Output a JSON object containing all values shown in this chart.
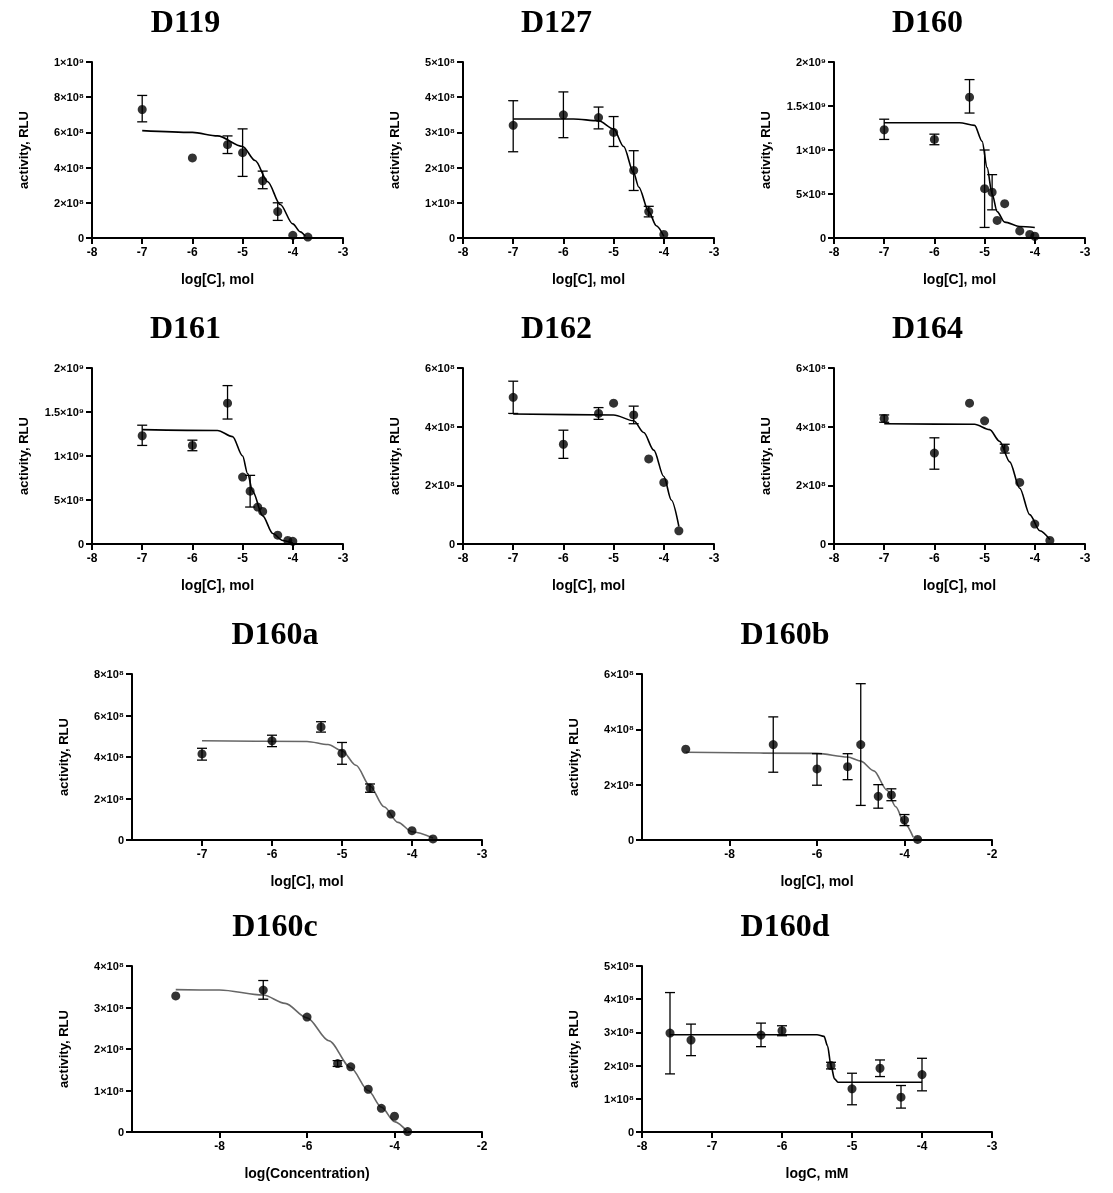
{
  "chart_data": [
    {
      "type": "scatter",
      "title": "D119",
      "xlabel": "log[C], mol",
      "ylabel": "activity, RLU",
      "xlim": [
        -8,
        -3
      ],
      "xticks": [
        -8,
        -7,
        -6,
        -5,
        -4,
        -3
      ],
      "ylim": [
        0,
        1000000000.0
      ],
      "yticks": [
        {
          "value": 0,
          "label": "0"
        },
        {
          "value": 200000000.0,
          "label": "2×10⁸"
        },
        {
          "value": 400000000.0,
          "label": "4×10⁸"
        },
        {
          "value": 600000000.0,
          "label": "6×10⁸"
        },
        {
          "value": 800000000.0,
          "label": "8×10⁸"
        },
        {
          "value": 1000000000.0,
          "label": "1×10⁹"
        }
      ],
      "marker": "circle",
      "series": [
        {
          "color": "#000000",
          "x": [
            -7,
            -6,
            -5.3,
            -5,
            -4.6,
            -4.3,
            -4,
            -3.7
          ],
          "values": [
            730000000.0,
            455000000.0,
            530000000.0,
            485000000.0,
            325000000.0,
            150000000.0,
            15000000.0,
            5000000.0
          ],
          "errors": [
            [
              660000000.0,
              810000000.0
            ],
            null,
            [
              480000000.0,
              580000000.0
            ],
            [
              350000000.0,
              620000000.0
            ],
            [
              280000000.0,
              380000000.0
            ],
            [
              100000000.0,
              200000000.0
            ],
            null,
            null
          ]
        },
        {
          "type": "line",
          "marker": "none",
          "color": "#000000",
          "x": [
            -7,
            -6,
            -5.5,
            -5,
            -4.75,
            -4.5,
            -4.25,
            -4,
            -3.85,
            -3.75
          ],
          "values": [
            610000000.0,
            600000000.0,
            580000000.0,
            520000000.0,
            440000000.0,
            320000000.0,
            190000000.0,
            80000000.0,
            35000000.0,
            10000000.0
          ]
        }
      ]
    },
    {
      "type": "scatter",
      "title": "D127",
      "xlabel": "log[C], mol",
      "ylabel": "activity, RLU",
      "xlim": [
        -8,
        -3
      ],
      "xticks": [
        -8,
        -7,
        -6,
        -5,
        -4,
        -3
      ],
      "ylim": [
        0,
        500000000.0
      ],
      "yticks": [
        {
          "value": 0,
          "label": "0"
        },
        {
          "value": 100000000.0,
          "label": "1×10⁸"
        },
        {
          "value": 200000000.0,
          "label": "2×10⁸"
        },
        {
          "value": 300000000.0,
          "label": "3×10⁸"
        },
        {
          "value": 400000000.0,
          "label": "4×10⁸"
        },
        {
          "value": 500000000.0,
          "label": "5×10⁸"
        }
      ],
      "marker": "circle",
      "series": [
        {
          "color": "#000000",
          "x": [
            -7,
            -6,
            -5.3,
            -5,
            -4.6,
            -4.3,
            -4
          ],
          "values": [
            320000000.0,
            350000000.0,
            342000000.0,
            300000000.0,
            192000000.0,
            75000000.0,
            10000000.0
          ],
          "errors": [
            [
              245000000.0,
              390000000.0
            ],
            [
              285000000.0,
              415000000.0
            ],
            [
              310000000.0,
              372000000.0
            ],
            [
              260000000.0,
              345000000.0
            ],
            [
              135000000.0,
              248000000.0
            ],
            [
              60000000.0,
              90000000.0
            ],
            null
          ]
        },
        {
          "type": "line",
          "marker": "none",
          "color": "#000000",
          "x": [
            -7,
            -5.8,
            -5.3,
            -5,
            -4.8,
            -4.6,
            -4.5,
            -4.3,
            -4.15,
            -4
          ],
          "values": [
            338000000.0,
            338000000.0,
            333000000.0,
            310000000.0,
            260000000.0,
            185000000.0,
            145000000.0,
            75000000.0,
            35000000.0,
            5000000.0
          ]
        }
      ]
    },
    {
      "type": "scatter",
      "title": "D160",
      "xlabel": "log[C], mol",
      "ylabel": "activity, RLU",
      "xlim": [
        -8,
        -3
      ],
      "xticks": [
        -8,
        -7,
        -6,
        -5,
        -4,
        -3
      ],
      "ylim": [
        0,
        2000000000.0
      ],
      "yticks": [
        {
          "value": 0,
          "label": "0"
        },
        {
          "value": 500000000.0,
          "label": "5×10⁸"
        },
        {
          "value": 1000000000.0,
          "label": "1×10⁹"
        },
        {
          "value": 1500000000.0,
          "label": "1.5×10⁹"
        },
        {
          "value": 2000000000.0,
          "label": "2×10⁹"
        }
      ],
      "marker": "circle",
      "series": [
        {
          "color": "#000000",
          "x": [
            -7,
            -6,
            -5.3,
            -5,
            -4.85,
            -4.75,
            -4.6,
            -4.3,
            -4.1,
            -4
          ],
          "values": [
            1230000000.0,
            1120000000.0,
            1600000000.0,
            560000000.0,
            520000000.0,
            200000000.0,
            390000000.0,
            80000000.0,
            40000000.0,
            20000000.0
          ],
          "errors": [
            [
              1120000000.0,
              1350000000.0
            ],
            [
              1060000000.0,
              1180000000.0
            ],
            [
              1420000000.0,
              1800000000.0
            ],
            [
              120000000.0,
              1000000000.0
            ],
            [
              320000000.0,
              720000000.0
            ],
            null,
            null,
            null,
            null,
            null
          ]
        },
        {
          "type": "line",
          "marker": "none",
          "color": "#000000",
          "x": [
            -7,
            -5.5,
            -5.2,
            -5.05,
            -4.95,
            -4.85,
            -4.75,
            -4.6,
            -4.3,
            -4
          ],
          "values": [
            1310000000.0,
            1310000000.0,
            1280000000.0,
            1100000000.0,
            800000000.0,
            500000000.0,
            300000000.0,
            180000000.0,
            130000000.0,
            120000000.0
          ]
        }
      ]
    },
    {
      "type": "scatter",
      "title": "D161",
      "xlabel": "log[C], mol",
      "ylabel": "activity, RLU",
      "xlim": [
        -8,
        -3
      ],
      "xticks": [
        -8,
        -7,
        -6,
        -5,
        -4,
        -3
      ],
      "ylim": [
        0,
        2000000000.0
      ],
      "yticks": [
        {
          "value": 0,
          "label": "0"
        },
        {
          "value": 500000000.0,
          "label": "5×10⁸"
        },
        {
          "value": 1000000000.0,
          "label": "1×10⁹"
        },
        {
          "value": 1500000000.0,
          "label": "1.5×10⁹"
        },
        {
          "value": 2000000000.0,
          "label": "2×10⁹"
        }
      ],
      "marker": "circle",
      "series": [
        {
          "color": "#000000",
          "x": [
            -7,
            -6,
            -5.3,
            -5,
            -4.85,
            -4.7,
            -4.6,
            -4.3,
            -4.1,
            -4
          ],
          "values": [
            1230000000.0,
            1120000000.0,
            1600000000.0,
            760000000.0,
            600000000.0,
            420000000.0,
            370000000.0,
            100000000.0,
            40000000.0,
            30000000.0
          ],
          "errors": [
            [
              1120000000.0,
              1350000000.0
            ],
            [
              1060000000.0,
              1180000000.0
            ],
            [
              1420000000.0,
              1800000000.0
            ],
            null,
            [
              420000000.0,
              780000000.0
            ],
            null,
            null,
            null,
            null,
            null
          ]
        },
        {
          "type": "line",
          "marker": "none",
          "color": "#000000",
          "x": [
            -7,
            -5.5,
            -5.2,
            -5,
            -4.9,
            -4.8,
            -4.6,
            -4.4,
            -4.2,
            -4
          ],
          "values": [
            1300000000.0,
            1290000000.0,
            1220000000.0,
            1000000000.0,
            800000000.0,
            600000000.0,
            320000000.0,
            120000000.0,
            40000000.0,
            10000000.0
          ]
        }
      ]
    },
    {
      "type": "scatter",
      "title": "D162",
      "xlabel": "log[C], mol",
      "ylabel": "activity, RLU",
      "xlim": [
        -8,
        -3
      ],
      "xticks": [
        -8,
        -7,
        -6,
        -5,
        -4,
        -3
      ],
      "ylim": [
        0,
        600000000.0
      ],
      "yticks": [
        {
          "value": 0,
          "label": "0"
        },
        {
          "value": 200000000.0,
          "label": "2×10⁸"
        },
        {
          "value": 400000000.0,
          "label": "4×10⁸"
        },
        {
          "value": 600000000.0,
          "label": "6×10⁸"
        }
      ],
      "marker": "circle",
      "series": [
        {
          "color": "#000000",
          "x": [
            -7,
            -6,
            -5.3,
            -5,
            -4.6,
            -4.3,
            -4,
            -3.7
          ],
          "values": [
            500000000.0,
            340000000.0,
            445000000.0,
            480000000.0,
            440000000.0,
            290000000.0,
            210000000.0,
            45000000.0
          ],
          "errors": [
            [
              445000000.0,
              555000000.0
            ],
            [
              292000000.0,
              388000000.0
            ],
            [
              425000000.0,
              465000000.0
            ],
            null,
            [
              410000000.0,
              470000000.0
            ],
            null,
            null,
            null
          ]
        },
        {
          "type": "line",
          "marker": "none",
          "color": "#000000",
          "x": [
            -7,
            -5,
            -4.6,
            -4.4,
            -4.2,
            -4,
            -3.85,
            -3.7
          ],
          "values": [
            443000000.0,
            440000000.0,
            420000000.0,
            380000000.0,
            320000000.0,
            230000000.0,
            150000000.0,
            60000000.0
          ]
        }
      ]
    },
    {
      "type": "scatter",
      "title": "D164",
      "xlabel": "log[C], mol",
      "ylabel": "activity, RLU",
      "xlim": [
        -8,
        -3
      ],
      "xticks": [
        -8,
        -7,
        -6,
        -5,
        -4,
        -3
      ],
      "ylim": [
        0,
        600000000.0
      ],
      "yticks": [
        {
          "value": 0,
          "label": "0"
        },
        {
          "value": 200000000.0,
          "label": "2×10⁸"
        },
        {
          "value": 400000000.0,
          "label": "4×10⁸"
        },
        {
          "value": 600000000.0,
          "label": "6×10⁸"
        }
      ],
      "marker": "circle",
      "series": [
        {
          "color": "#000000",
          "x": [
            -7,
            -6,
            -5.3,
            -5,
            -4.6,
            -4.3,
            -4,
            -3.7
          ],
          "values": [
            428000000.0,
            310000000.0,
            480000000.0,
            420000000.0,
            325000000.0,
            210000000.0,
            68000000.0,
            12000000.0
          ],
          "errors": [
            [
              415000000.0,
              440000000.0
            ],
            [
              255000000.0,
              362000000.0
            ],
            null,
            null,
            [
              310000000.0,
              340000000.0
            ],
            null,
            null,
            null
          ]
        },
        {
          "type": "line",
          "marker": "none",
          "color": "#000000",
          "x": [
            -7,
            -5.2,
            -4.9,
            -4.7,
            -4.5,
            -4.3,
            -4.1,
            -3.9,
            -3.7
          ],
          "values": [
            410000000.0,
            408000000.0,
            390000000.0,
            350000000.0,
            280000000.0,
            190000000.0,
            100000000.0,
            45000000.0,
            15000000.0
          ]
        }
      ]
    },
    {
      "type": "scatter",
      "title": "D160a",
      "xlabel": "log[C], mol",
      "ylabel": "activity, RLU",
      "xlim": [
        -8,
        -3
      ],
      "xticks": [
        -7,
        -6,
        -5,
        -4,
        -3
      ],
      "ylim": [
        0,
        800000000.0
      ],
      "yticks": [
        {
          "value": 0,
          "label": "0"
        },
        {
          "value": 200000000.0,
          "label": "2×10⁸"
        },
        {
          "value": 400000000.0,
          "label": "4×10⁸"
        },
        {
          "value": 600000000.0,
          "label": "6×10⁸"
        },
        {
          "value": 800000000.0,
          "label": "8×10⁸"
        }
      ],
      "marker": "circle",
      "series": [
        {
          "color": "#000000",
          "x": [
            -7,
            -6,
            -5.3,
            -5,
            -4.6,
            -4.3,
            -4,
            -3.7
          ],
          "values": [
            415000000.0,
            478000000.0,
            545000000.0,
            418000000.0,
            250000000.0,
            125000000.0,
            45000000.0,
            5000000.0
          ],
          "errors": [
            [
              385000000.0,
              442000000.0
            ],
            [
              450000000.0,
              505000000.0
            ],
            [
              520000000.0,
              570000000.0
            ],
            [
              365000000.0,
              470000000.0
            ],
            [
              230000000.0,
              270000000.0
            ],
            null,
            null,
            null
          ]
        },
        {
          "type": "line",
          "marker": "none",
          "color": "#666666",
          "x": [
            -7,
            -5.5,
            -5.2,
            -5,
            -4.8,
            -4.6,
            -4.4,
            -4.2,
            -4,
            -3.7
          ],
          "values": [
            478000000.0,
            475000000.0,
            460000000.0,
            430000000.0,
            360000000.0,
            260000000.0,
            160000000.0,
            85000000.0,
            40000000.0,
            10000000.0
          ]
        }
      ]
    },
    {
      "type": "scatter",
      "title": "D160b",
      "xlabel": "log[C], mol",
      "ylabel": "activity, RLU",
      "xlim": [
        -10,
        -2
      ],
      "xticks": [
        -8,
        -6,
        -4,
        -2
      ],
      "ylim": [
        0,
        600000000.0
      ],
      "yticks": [
        {
          "value": 0,
          "label": "0"
        },
        {
          "value": 200000000.0,
          "label": "2×10⁸"
        },
        {
          "value": 400000000.0,
          "label": "4×10⁸"
        },
        {
          "value": 600000000.0,
          "label": "6×10⁸"
        }
      ],
      "marker": "circle",
      "series": [
        {
          "color": "#000000",
          "x": [
            -9,
            -7,
            -6,
            -5.3,
            -5,
            -4.6,
            -4.3,
            -4,
            -3.7
          ],
          "values": [
            328000000.0,
            345000000.0,
            257000000.0,
            265000000.0,
            345000000.0,
            158000000.0,
            163000000.0,
            72000000.0,
            2000000.0
          ],
          "errors": [
            null,
            [
              245000000.0,
              445000000.0
            ],
            [
              198000000.0,
              312000000.0
            ],
            [
              218000000.0,
              312000000.0
            ],
            [
              125000000.0,
              565000000.0
            ],
            [
              115000000.0,
              200000000.0
            ],
            [
              142000000.0,
              185000000.0
            ],
            [
              52000000.0,
              92000000.0
            ],
            null
          ]
        },
        {
          "type": "line",
          "marker": "none",
          "color": "#666666",
          "x": [
            -9,
            -6,
            -5.3,
            -5,
            -4.7,
            -4.4,
            -4.2,
            -4,
            -3.8
          ],
          "values": [
            317000000.0,
            313000000.0,
            300000000.0,
            285000000.0,
            250000000.0,
            180000000.0,
            120000000.0,
            60000000.0,
            10000000.0
          ]
        }
      ]
    },
    {
      "type": "scatter",
      "title": "D160c",
      "xlabel": "log(Concentration)",
      "ylabel": "activity, RLU",
      "xlim": [
        -10,
        -2
      ],
      "xticks": [
        -8,
        -6,
        -4,
        -2
      ],
      "ylim": [
        0,
        400000000.0
      ],
      "yticks": [
        {
          "value": 0,
          "label": "0"
        },
        {
          "value": 100000000.0,
          "label": "1×10⁸"
        },
        {
          "value": 200000000.0,
          "label": "2×10⁸"
        },
        {
          "value": 300000000.0,
          "label": "3×10⁸"
        },
        {
          "value": 400000000.0,
          "label": "4×10⁸"
        }
      ],
      "marker": "circle",
      "series": [
        {
          "color": "#000000",
          "x": [
            -9,
            -7,
            -6,
            -5.3,
            -5,
            -4.6,
            -4.3,
            -4,
            -3.7
          ],
          "values": [
            328000000.0,
            342000000.0,
            277000000.0,
            165000000.0,
            157000000.0,
            103000000.0,
            57000000.0,
            38000000.0,
            1000000.0
          ],
          "errors": [
            null,
            [
              320000000.0,
              365000000.0
            ],
            null,
            [
              158000000.0,
              172000000.0
            ],
            null,
            null,
            null,
            null,
            null
          ]
        },
        {
          "type": "line",
          "marker": "none",
          "color": "#666666",
          "x": [
            -9,
            -8,
            -7,
            -6.5,
            -6,
            -5.5,
            -5,
            -4.6,
            -4.3,
            -4,
            -3.7
          ],
          "values": [
            343000000.0,
            342000000.0,
            330000000.0,
            310000000.0,
            275000000.0,
            220000000.0,
            155000000.0,
            100000000.0,
            60000000.0,
            25000000.0,
            0
          ]
        }
      ]
    },
    {
      "type": "scatter",
      "title": "D160d",
      "xlabel": "logC, mM",
      "ylabel": "activity, RLU",
      "xlim": [
        -8,
        -3
      ],
      "xticks": [
        -8,
        -7,
        -6,
        -5,
        -4,
        -3
      ],
      "ylim": [
        0,
        500000000.0
      ],
      "yticks": [
        {
          "value": 0,
          "label": "0"
        },
        {
          "value": 100000000.0,
          "label": "1×10⁸"
        },
        {
          "value": 200000000.0,
          "label": "2×10⁸"
        },
        {
          "value": 300000000.0,
          "label": "3×10⁸"
        },
        {
          "value": 400000000.0,
          "label": "4×10⁸"
        },
        {
          "value": 500000000.0,
          "label": "5×10⁸"
        }
      ],
      "marker": "circle",
      "series": [
        {
          "color": "#000000",
          "x": [
            -7.6,
            -7.3,
            -6.3,
            -6,
            -5.3,
            -5,
            -4.6,
            -4.3,
            -4
          ],
          "values": [
            298000000.0,
            277000000.0,
            292000000.0,
            305000000.0,
            200000000.0,
            130000000.0,
            192000000.0,
            105000000.0,
            173000000.0
          ],
          "errors": [
            [
              175000000.0,
              420000000.0
            ],
            [
              230000000.0,
              325000000.0
            ],
            [
              257000000.0,
              328000000.0
            ],
            [
              290000000.0,
              320000000.0
            ],
            [
              190000000.0,
              210000000.0
            ],
            [
              82000000.0,
              177000000.0
            ],
            [
              167000000.0,
              217000000.0
            ],
            [
              72000000.0,
              140000000.0
            ],
            [
              124000000.0,
              222000000.0
            ]
          ]
        },
        {
          "type": "line",
          "marker": "none",
          "color": "#000000",
          "x": [
            -7.6,
            -5.5,
            -5.4,
            -5.35,
            -5.3,
            -5.25,
            -5.2,
            -4
          ],
          "values": [
            293000000.0,
            293000000.0,
            288000000.0,
            260000000.0,
            200000000.0,
            160000000.0,
            150000000.0,
            150000000.0
          ]
        }
      ]
    }
  ]
}
